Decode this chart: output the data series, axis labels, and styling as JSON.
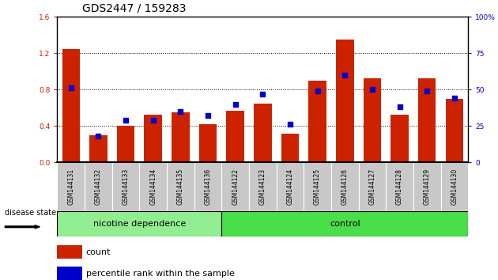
{
  "title": "GDS2447 / 159283",
  "samples": [
    "GSM144131",
    "GSM144132",
    "GSM144133",
    "GSM144134",
    "GSM144135",
    "GSM144136",
    "GSM144122",
    "GSM144123",
    "GSM144124",
    "GSM144125",
    "GSM144126",
    "GSM144127",
    "GSM144128",
    "GSM144129",
    "GSM144130"
  ],
  "count_values": [
    1.25,
    0.3,
    0.4,
    0.52,
    0.55,
    0.42,
    0.57,
    0.65,
    0.32,
    0.9,
    1.35,
    0.92,
    0.52,
    0.92,
    0.7
  ],
  "percentile_values": [
    51,
    18,
    29,
    29,
    35,
    32,
    40,
    47,
    26,
    49,
    60,
    50,
    38,
    49,
    44
  ],
  "groups": [
    {
      "label": "nicotine dependence",
      "start": 0,
      "end": 6,
      "color": "#90EE90"
    },
    {
      "label": "control",
      "start": 6,
      "end": 15,
      "color": "#4ADE4A"
    }
  ],
  "left_ylim": [
    0,
    1.6
  ],
  "right_ylim": [
    0,
    100
  ],
  "left_yticks": [
    0,
    0.4,
    0.8,
    1.2,
    1.6
  ],
  "right_yticks": [
    0,
    25,
    50,
    75,
    100
  ],
  "bar_color": "#CC2200",
  "dot_color": "#0000CC",
  "xtick_bg": "#C8C8C8",
  "disease_state_label": "disease state",
  "legend_count": "count",
  "legend_pct": "percentile rank within the sample",
  "title_fontsize": 10,
  "tick_fontsize": 6.5,
  "label_fontsize": 8,
  "legend_fontsize": 8
}
